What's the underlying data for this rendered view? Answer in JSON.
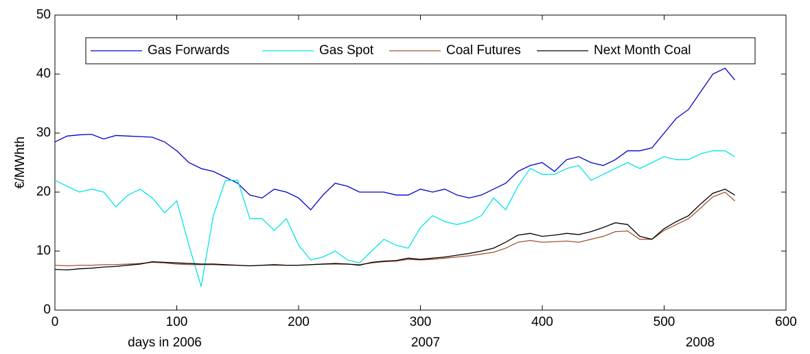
{
  "chart_data": {
    "type": "line",
    "y_label": "€/MWhth",
    "annotations": [
      "days in 2006",
      "2007",
      "2008"
    ],
    "xlim": [
      0,
      600
    ],
    "xticks": [
      0,
      100,
      200,
      300,
      400,
      500,
      600
    ],
    "ylim": [
      0,
      50
    ],
    "yticks": [
      0,
      10,
      20,
      30,
      40,
      50
    ],
    "grid": false,
    "legend": "top",
    "x": [
      0,
      10,
      20,
      30,
      40,
      50,
      60,
      70,
      80,
      90,
      100,
      110,
      120,
      130,
      140,
      150,
      160,
      170,
      180,
      190,
      200,
      210,
      220,
      230,
      240,
      250,
      260,
      270,
      280,
      290,
      300,
      310,
      320,
      330,
      340,
      350,
      360,
      370,
      380,
      390,
      400,
      410,
      420,
      430,
      440,
      450,
      460,
      470,
      480,
      490,
      500,
      510,
      520,
      530,
      540,
      550,
      558
    ],
    "series": [
      {
        "name": "Gas Forwards",
        "color": "#0000cc",
        "values": [
          28.5,
          29.5,
          29.7,
          29.8,
          29,
          29.6,
          29.5,
          29.4,
          29.3,
          28.5,
          27,
          25,
          24,
          23.5,
          22.5,
          21.5,
          19.5,
          19,
          20.5,
          20,
          19,
          17,
          19.5,
          21.5,
          21,
          20,
          20,
          20,
          19.5,
          19.5,
          20.5,
          20,
          20.5,
          19.5,
          19,
          19.5,
          20.5,
          21.5,
          23.5,
          24.5,
          25,
          23.5,
          25.5,
          26,
          25,
          24.5,
          25.5,
          27,
          27,
          27.5,
          30,
          32.5,
          34,
          37,
          40,
          41,
          39
        ]
      },
      {
        "name": "Gas Spot",
        "color": "#00e5e5",
        "values": [
          22,
          21,
          20,
          20.5,
          20,
          17.5,
          19.5,
          20.5,
          19,
          16.5,
          18.5,
          11,
          4,
          16,
          22,
          22,
          15.5,
          15.5,
          13.5,
          15.5,
          11,
          8.5,
          9,
          10,
          8.5,
          8,
          10,
          12,
          11,
          10.5,
          14,
          16,
          15,
          14.5,
          15,
          16,
          19,
          17,
          21,
          24,
          23,
          23,
          24,
          24.5,
          22,
          23,
          24,
          25,
          24,
          25,
          26,
          25.5,
          25.5,
          26.5,
          27,
          27,
          26
        ]
      },
      {
        "name": "Coal Futures",
        "color": "#a0522d",
        "values": [
          7.6,
          7.5,
          7.6,
          7.6,
          7.7,
          7.7,
          7.8,
          7.9,
          8.1,
          8,
          7.8,
          7.7,
          7.7,
          7.7,
          7.6,
          7.6,
          7.5,
          7.6,
          7.6,
          7.6,
          7.6,
          7.7,
          7.8,
          7.8,
          7.8,
          7.7,
          8,
          8.2,
          8.3,
          8.6,
          8.5,
          8.6,
          8.8,
          9,
          9.2,
          9.5,
          9.8,
          10.5,
          11.5,
          11.8,
          11.5,
          11.6,
          11.7,
          11.5,
          12,
          12.5,
          13.3,
          13.4,
          12,
          12,
          13.5,
          14.5,
          15.5,
          17.3,
          19.2,
          20,
          18.5
        ]
      },
      {
        "name": "Next Month Coal",
        "color": "#000000",
        "values": [
          6.9,
          6.8,
          7,
          7.1,
          7.3,
          7.4,
          7.6,
          7.8,
          8.2,
          8.1,
          8,
          7.9,
          7.8,
          7.8,
          7.7,
          7.6,
          7.5,
          7.6,
          7.7,
          7.6,
          7.6,
          7.7,
          7.8,
          7.9,
          7.8,
          7.6,
          8.1,
          8.3,
          8.4,
          8.8,
          8.6,
          8.8,
          9,
          9.3,
          9.6,
          10,
          10.5,
          11.5,
          12.7,
          13,
          12.5,
          12.7,
          13,
          12.8,
          13.3,
          14,
          14.8,
          14.5,
          12.5,
          12,
          13.8,
          15,
          16,
          18,
          19.8,
          20.5,
          19.5
        ]
      }
    ]
  }
}
